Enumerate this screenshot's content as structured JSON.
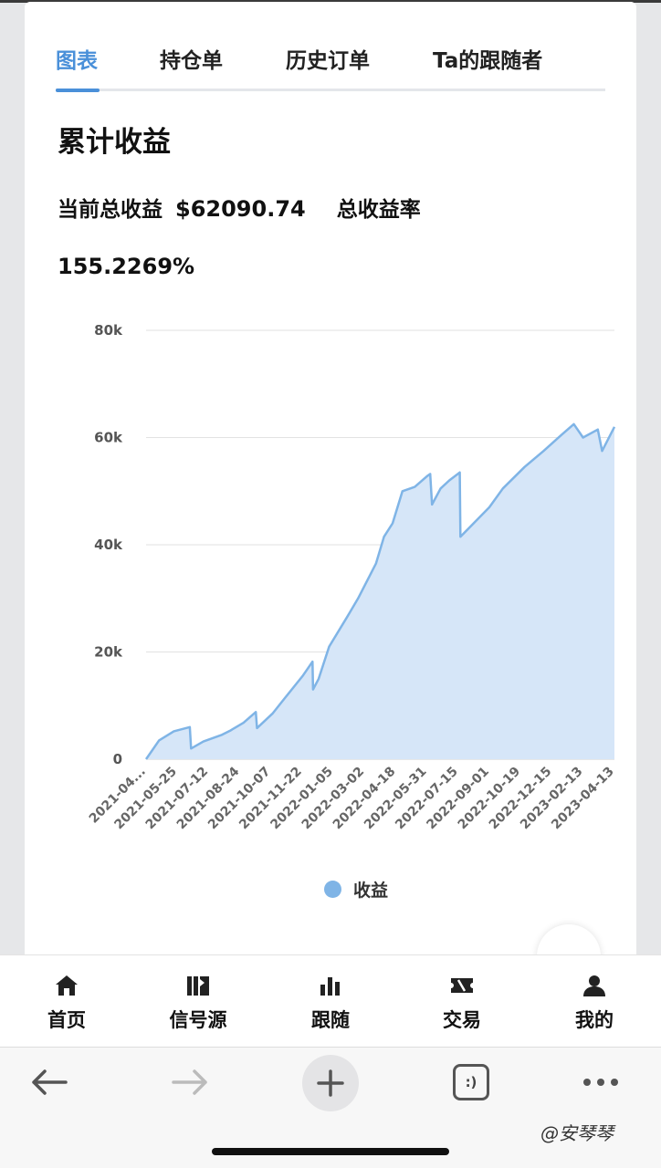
{
  "tabs": [
    {
      "label": "图表",
      "active": true
    },
    {
      "label": "持仓单",
      "active": false
    },
    {
      "label": "历史订单",
      "active": false
    },
    {
      "label": "Ta的跟随者",
      "active": false
    }
  ],
  "section": {
    "title": "累计收益",
    "total_label": "当前总收益",
    "total_value": "$62090.74",
    "rate_label": "总收益率",
    "rate_value": "155.2269%"
  },
  "chart_data": {
    "type": "area",
    "title": "",
    "xlabel": "",
    "ylabel": "",
    "ylim": [
      0,
      80000
    ],
    "yticks": [
      "0",
      "20k",
      "40k",
      "60k",
      "80k"
    ],
    "x_tick_labels": [
      "2021-04...",
      "2021-05-25",
      "2021-07-12",
      "2021-08-24",
      "2021-10-07",
      "2021-11-22",
      "2022-01-05",
      "2022-03-02",
      "2022-04-18",
      "2022-05-31",
      "2022-07-15",
      "2022-09-01",
      "2022-10-19",
      "2022-12-15",
      "2023-02-13",
      "2023-04-13"
    ],
    "grid": true,
    "legend_position": "bottom",
    "color": "#7fb4e6",
    "series": [
      {
        "name": "收益",
        "x": [
          "2021-04-10",
          "2021-05-01",
          "2021-05-25",
          "2021-06-20",
          "2021-06-22",
          "2021-07-12",
          "2021-08-10",
          "2021-08-24",
          "2021-09-15",
          "2021-10-05",
          "2021-10-07",
          "2021-11-01",
          "2021-11-22",
          "2021-12-20",
          "2022-01-05",
          "2022-01-06",
          "2022-01-15",
          "2022-02-01",
          "2022-03-02",
          "2022-03-20",
          "2022-04-18",
          "2022-05-01",
          "2022-05-15",
          "2022-05-31",
          "2022-06-20",
          "2022-07-10",
          "2022-07-15",
          "2022-07-18",
          "2022-08-01",
          "2022-08-15",
          "2022-09-01",
          "2022-09-02",
          "2022-09-15",
          "2022-10-19",
          "2022-11-10",
          "2022-12-15",
          "2023-01-15",
          "2023-02-13",
          "2023-03-05",
          "2023-03-20",
          "2023-04-13",
          "2023-04-20",
          "2023-05-10"
        ],
        "y": [
          0,
          3500,
          5200,
          6000,
          2000,
          3300,
          4500,
          5300,
          6800,
          8800,
          5800,
          8500,
          11500,
          15500,
          18200,
          13000,
          15000,
          21000,
          26500,
          30000,
          36500,
          41500,
          44000,
          50000,
          50800,
          52800,
          53200,
          47500,
          50500,
          52000,
          53500,
          41500,
          43000,
          47000,
          50500,
          54500,
          57500,
          60500,
          62500,
          60000,
          61500,
          57500,
          62000
        ]
      }
    ]
  },
  "legend": {
    "label": "收益"
  },
  "bottom_nav": [
    {
      "label": "首页",
      "icon": "home-icon"
    },
    {
      "label": "信号源",
      "icon": "signal-source-icon"
    },
    {
      "label": "跟随",
      "icon": "bar-chart-icon"
    },
    {
      "label": "交易",
      "icon": "ticket-icon"
    },
    {
      "label": "我的",
      "icon": "user-icon"
    }
  ],
  "browser": {
    "tab_count_label": ":)"
  },
  "watermark": "@安琴琴"
}
